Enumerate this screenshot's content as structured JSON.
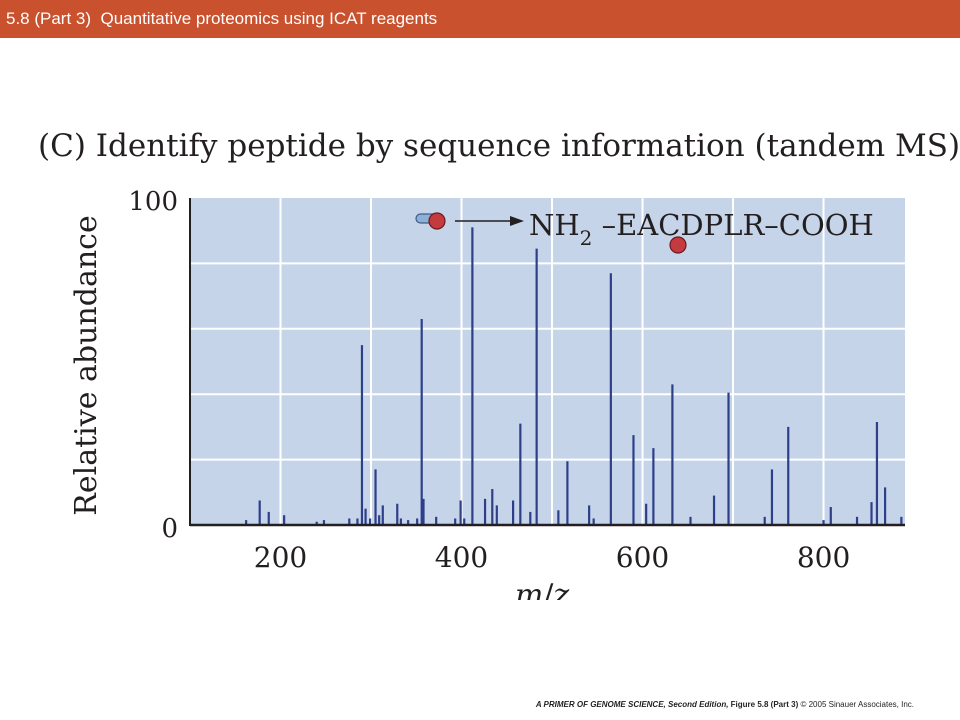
{
  "header": {
    "title": "5.8 (Part 3)  Quantitative proteomics using ICAT reagents"
  },
  "figure": {
    "heading": "(C)  Identify peptide by sequence information (tandem MS)"
  },
  "chart_data": {
    "type": "bar",
    "title": "",
    "xlabel": "m/z",
    "ylabel": "Relative abundance",
    "xlim": [
      100,
      890
    ],
    "ylim": [
      0,
      100
    ],
    "x_ticks": [
      200,
      400,
      600,
      800
    ],
    "y_ticks": [
      0,
      100
    ],
    "grid": true,
    "annotation": {
      "sequence_prefix": "NH",
      "sequence_subscript": "2",
      "sequence_suffix": " –EACDPLR–COOH"
    },
    "peaks": [
      {
        "x": 162,
        "y": 1.5
      },
      {
        "x": 177,
        "y": 7.5
      },
      {
        "x": 187,
        "y": 4
      },
      {
        "x": 204,
        "y": 3
      },
      {
        "x": 240,
        "y": 1
      },
      {
        "x": 248,
        "y": 1.5
      },
      {
        "x": 276,
        "y": 2
      },
      {
        "x": 285,
        "y": 2
      },
      {
        "x": 290,
        "y": 55
      },
      {
        "x": 294,
        "y": 5
      },
      {
        "x": 299,
        "y": 2
      },
      {
        "x": 305,
        "y": 17
      },
      {
        "x": 309,
        "y": 3
      },
      {
        "x": 313,
        "y": 6
      },
      {
        "x": 329,
        "y": 6.5
      },
      {
        "x": 333,
        "y": 2
      },
      {
        "x": 341,
        "y": 1.5
      },
      {
        "x": 351,
        "y": 2
      },
      {
        "x": 356,
        "y": 63
      },
      {
        "x": 358,
        "y": 8
      },
      {
        "x": 372,
        "y": 2.5
      },
      {
        "x": 393,
        "y": 2
      },
      {
        "x": 399,
        "y": 7.5
      },
      {
        "x": 403,
        "y": 2
      },
      {
        "x": 412,
        "y": 91
      },
      {
        "x": 426,
        "y": 8
      },
      {
        "x": 434,
        "y": 11
      },
      {
        "x": 439,
        "y": 6
      },
      {
        "x": 457,
        "y": 7.5
      },
      {
        "x": 465,
        "y": 31
      },
      {
        "x": 476,
        "y": 4
      },
      {
        "x": 483,
        "y": 84.5
      },
      {
        "x": 507,
        "y": 4.5
      },
      {
        "x": 517,
        "y": 19.5
      },
      {
        "x": 541,
        "y": 6
      },
      {
        "x": 546,
        "y": 2
      },
      {
        "x": 565,
        "y": 77
      },
      {
        "x": 590,
        "y": 27.5
      },
      {
        "x": 604,
        "y": 6.5
      },
      {
        "x": 612,
        "y": 23.5
      },
      {
        "x": 633,
        "y": 43
      },
      {
        "x": 653,
        "y": 2.5
      },
      {
        "x": 679,
        "y": 9
      },
      {
        "x": 695,
        "y": 40.5
      },
      {
        "x": 735,
        "y": 2.5
      },
      {
        "x": 743,
        "y": 17
      },
      {
        "x": 761,
        "y": 30
      },
      {
        "x": 800,
        "y": 1.5
      },
      {
        "x": 808,
        "y": 5.5
      },
      {
        "x": 837,
        "y": 2.5
      },
      {
        "x": 853,
        "y": 7
      },
      {
        "x": 859,
        "y": 31.5
      },
      {
        "x": 868,
        "y": 11.5
      },
      {
        "x": 886,
        "y": 2.5
      }
    ]
  },
  "caption": {
    "book": "A PRIMER OF GENOME SCIENCE, Second Edition,",
    "figure": "Figure 5.8 (Part 3)",
    "copyright": "© 2005 Sinauer Associates, Inc."
  },
  "colors": {
    "header_bar": "#c9512e",
    "plot_background": "#c5d4e8",
    "peak": "#2e3f8a",
    "marker": "#c53a3f"
  }
}
